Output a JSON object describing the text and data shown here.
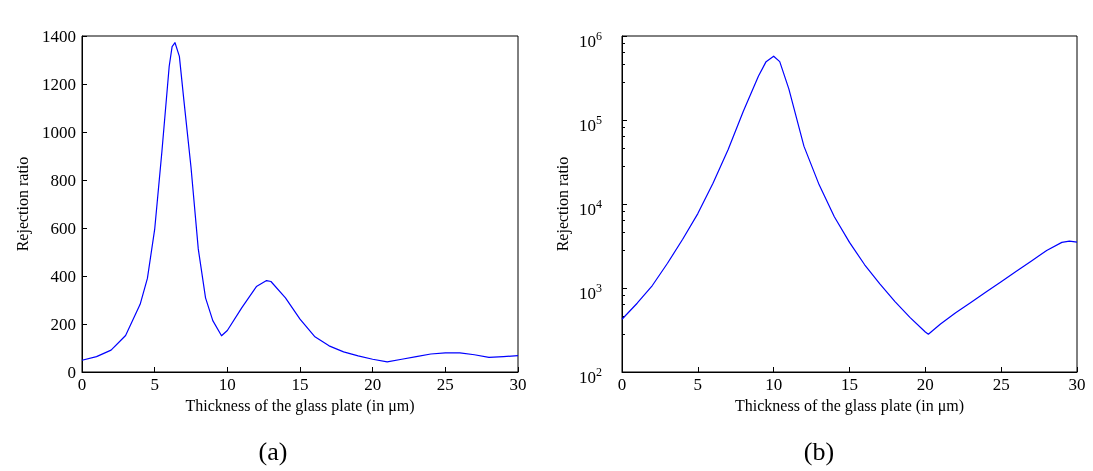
{
  "chart_data": [
    {
      "type": "line",
      "xlabel": "Thickness of the glass plate (in μm)",
      "ylabel": "Rejection ratio",
      "annotations": [
        "(a)"
      ],
      "xlim": [
        0,
        30
      ],
      "xticks": [
        0,
        5,
        10,
        15,
        20,
        25,
        30
      ],
      "ylim": [
        0,
        1400
      ],
      "yticks": [
        0,
        200,
        400,
        600,
        800,
        1000,
        1200,
        1400
      ],
      "x": [
        0,
        1,
        2,
        3,
        4,
        4.5,
        5,
        5.5,
        6,
        6.2,
        6.4,
        6.7,
        7,
        7.5,
        8,
        8.5,
        9,
        9.6,
        10,
        11,
        12,
        12.7,
        13,
        14,
        15,
        16,
        17,
        18,
        19,
        20,
        21,
        22,
        23,
        24,
        25,
        26,
        27,
        28,
        29,
        30
      ],
      "series": [
        {
          "color": "#0000ff",
          "values": [
            49,
            64,
            91,
            152,
            282,
            390,
            594,
            920,
            1274,
            1356,
            1372,
            1315,
            1138,
            853,
            513,
            309,
            214,
            151,
            173,
            268,
            356,
            381,
            377,
            309,
            220,
            148,
            109,
            84,
            67,
            53,
            42,
            53,
            64,
            75,
            80,
            80,
            72,
            61,
            64,
            68
          ]
        }
      ]
    },
    {
      "type": "line",
      "xlabel": "Thickness of the glass plate (in μm)",
      "ylabel": "Rejection ratio",
      "annotations": [
        "(b)"
      ],
      "log": "y",
      "xlim": [
        0,
        30
      ],
      "xticks": [
        0,
        5,
        10,
        15,
        20,
        25,
        30
      ],
      "ylim": [
        100,
        1000000
      ],
      "yticks": [
        {
          "value": 100,
          "label": "10$^{2}$"
        },
        {
          "value": 1000,
          "label": "10$^{3}$"
        },
        {
          "value": 10000,
          "label": "10$^{4}$"
        },
        {
          "value": 100000,
          "label": "10$^{5}$"
        },
        {
          "value": 1000000,
          "label": "10$^{6}$"
        }
      ],
      "x": [
        0,
        1,
        2,
        3,
        4,
        5,
        6,
        7,
        8,
        9,
        9.5,
        10,
        10.4,
        11,
        12,
        13,
        14,
        15,
        16,
        17,
        18,
        19,
        20,
        20.2,
        21,
        22,
        23,
        24,
        25,
        26,
        27,
        28,
        29,
        29.5,
        30
      ],
      "series": [
        {
          "color": "#0000ff",
          "values": [
            425,
            659,
            1070,
            1970,
            3810,
            7690,
            17700,
            44500,
            127000,
            334000,
            495000,
            575000,
            495000,
            235000,
            48500,
            16900,
            7050,
            3490,
            1890,
            1120,
            689,
            444,
            299,
            282,
            373,
            507,
            671,
            896,
            1190,
            1580,
            2100,
            2800,
            3490,
            3610,
            3520
          ]
        }
      ]
    }
  ]
}
